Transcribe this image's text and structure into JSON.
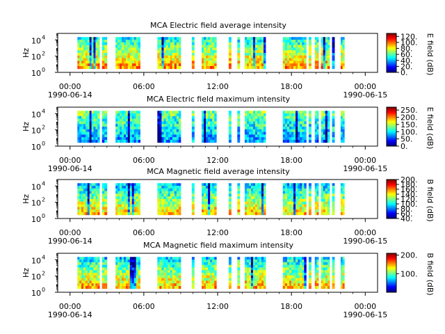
{
  "chart_data": [
    {
      "type": "heatmap",
      "title": "MCA  Electric field average intensity",
      "ylabel": "Hz",
      "colorbar_label": "E field (dB)",
      "colorbar_ticks": [
        "0.",
        "20.",
        "40.",
        "60.",
        "80.",
        "100.",
        "120."
      ],
      "colorbar_range": [
        0,
        130
      ],
      "y_ticks": [
        "10",
        "10",
        "10"
      ],
      "y_tick_exponents": [
        "0",
        "2",
        "4"
      ],
      "y_range_log10": [
        0,
        4.8
      ],
      "x_ticks": [
        "00:00",
        "06:00",
        "12:00",
        "18:00",
        "00:00"
      ],
      "x_date_labels": [
        "1990-06-14",
        "1990-06-15"
      ],
      "x_range_hours": [
        -1,
        25
      ],
      "base_intensity": 0.55,
      "intervals_hours": [
        [
          0.6,
          2.4
        ],
        [
          2.6,
          3.0
        ],
        [
          3.7,
          5.7
        ],
        [
          7.1,
          9.0
        ],
        [
          9.9,
          10.1
        ],
        [
          10.7,
          11.9
        ],
        [
          12.9,
          13.1
        ],
        [
          13.6,
          13.8
        ],
        [
          14.2,
          15.9
        ],
        [
          17.3,
          19.2
        ],
        [
          19.4,
          19.6
        ],
        [
          19.9,
          20.2
        ],
        [
          20.4,
          21.1
        ],
        [
          21.3,
          21.5
        ],
        [
          22.0,
          22.3
        ]
      ]
    },
    {
      "type": "heatmap",
      "title": "MCA  Electric field maximum intensity",
      "ylabel": "Hz",
      "colorbar_label": "E field (dB)",
      "colorbar_ticks": [
        "0.",
        "50.",
        "100.",
        "150.",
        "200.",
        "250."
      ],
      "colorbar_range": [
        0,
        270
      ],
      "y_ticks": [
        "10",
        "10",
        "10"
      ],
      "y_tick_exponents": [
        "0",
        "2",
        "4"
      ],
      "y_range_log10": [
        0,
        4.8
      ],
      "x_ticks": [
        "00:00",
        "06:00",
        "12:00",
        "18:00",
        "00:00"
      ],
      "x_date_labels": [
        "1990-06-14",
        "1990-06-15"
      ],
      "x_range_hours": [
        -1,
        25
      ],
      "base_intensity": 0.38,
      "intervals_hours": [
        [
          0.6,
          2.4
        ],
        [
          2.6,
          3.0
        ],
        [
          3.7,
          5.7
        ],
        [
          7.1,
          9.0
        ],
        [
          9.9,
          10.1
        ],
        [
          10.7,
          11.9
        ],
        [
          12.9,
          13.1
        ],
        [
          13.6,
          13.8
        ],
        [
          14.2,
          15.9
        ],
        [
          17.3,
          19.2
        ],
        [
          19.4,
          19.6
        ],
        [
          19.9,
          20.2
        ],
        [
          20.4,
          21.1
        ],
        [
          21.3,
          21.5
        ],
        [
          22.0,
          22.3
        ]
      ]
    },
    {
      "type": "heatmap",
      "title": "MCA  Magnetic field average intensity",
      "ylabel": "Hz",
      "colorbar_label": "B field (dB)",
      "colorbar_ticks": [
        "40.",
        "60.",
        "80.",
        "100.",
        "120.",
        "140.",
        "160.",
        "180.",
        "200."
      ],
      "colorbar_range": [
        40,
        200
      ],
      "y_ticks": [
        "10",
        "10",
        "10"
      ],
      "y_tick_exponents": [
        "0",
        "2",
        "4"
      ],
      "y_range_log10": [
        0,
        4.8
      ],
      "x_ticks": [
        "00:00",
        "06:00",
        "12:00",
        "18:00",
        "00:00"
      ],
      "x_date_labels": [
        "1990-06-14",
        "1990-06-15"
      ],
      "x_range_hours": [
        -1,
        25
      ],
      "base_intensity": 0.5,
      "intervals_hours": [
        [
          0.6,
          2.4
        ],
        [
          2.6,
          3.0
        ],
        [
          3.7,
          5.7
        ],
        [
          7.1,
          9.0
        ],
        [
          9.9,
          10.1
        ],
        [
          10.7,
          11.9
        ],
        [
          12.9,
          13.1
        ],
        [
          13.6,
          13.8
        ],
        [
          14.2,
          15.9
        ],
        [
          17.3,
          19.2
        ],
        [
          19.4,
          19.6
        ],
        [
          19.9,
          20.2
        ],
        [
          20.4,
          21.1
        ],
        [
          21.3,
          21.5
        ],
        [
          22.0,
          22.3
        ]
      ]
    },
    {
      "type": "heatmap",
      "title": "MCA  Magnetic field maximum intensity",
      "ylabel": "Hz",
      "colorbar_label": "B field (dB)",
      "colorbar_ticks": [
        "100.",
        "200."
      ],
      "colorbar_range": [
        0,
        210
      ],
      "y_ticks": [
        "10",
        "10",
        "10"
      ],
      "y_tick_exponents": [
        "0",
        "2",
        "4"
      ],
      "y_range_log10": [
        0,
        4.8
      ],
      "x_ticks": [
        "00:00",
        "06:00",
        "12:00",
        "18:00",
        "00:00"
      ],
      "x_date_labels": [
        "1990-06-14",
        "1990-06-15"
      ],
      "x_range_hours": [
        -1,
        25
      ],
      "base_intensity": 0.52,
      "intervals_hours": [
        [
          0.6,
          2.4
        ],
        [
          2.6,
          3.0
        ],
        [
          3.7,
          5.7
        ],
        [
          7.1,
          9.0
        ],
        [
          9.9,
          10.1
        ],
        [
          10.7,
          11.9
        ],
        [
          12.9,
          13.1
        ],
        [
          13.6,
          13.8
        ],
        [
          14.2,
          15.9
        ],
        [
          17.3,
          19.2
        ],
        [
          19.4,
          19.6
        ],
        [
          19.9,
          20.2
        ],
        [
          20.4,
          21.1
        ],
        [
          21.3,
          21.5
        ],
        [
          22.0,
          22.3
        ]
      ]
    }
  ]
}
